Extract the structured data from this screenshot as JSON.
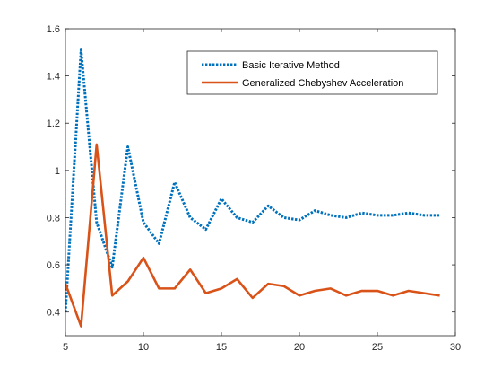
{
  "chart_data": {
    "type": "line",
    "title": "",
    "xlabel": "",
    "ylabel": "",
    "xlim": [
      5,
      30
    ],
    "ylim": [
      0.3,
      1.6
    ],
    "xticks": [
      5,
      10,
      15,
      20,
      25,
      30
    ],
    "yticks": [
      0.4,
      0.6,
      0.8,
      1,
      1.2,
      1.4,
      1.6
    ],
    "xtick_labels": [
      "5",
      "10",
      "15",
      "20",
      "25",
      "30"
    ],
    "ytick_labels": [
      "0.4",
      "0.6",
      "0.8",
      "1",
      "1.2",
      "1.4",
      "1.6"
    ],
    "grid": false,
    "legend_position": "top-right",
    "series": [
      {
        "name": "Basic Iterative Method",
        "color": "#0072BD",
        "style": "dotted",
        "x": [
          5,
          6,
          7,
          8,
          9,
          10,
          11,
          12,
          13,
          14,
          15,
          16,
          17,
          18,
          19,
          20,
          21,
          22,
          23,
          24,
          25,
          26,
          27,
          28,
          29
        ],
        "y": [
          0.4,
          1.51,
          0.78,
          0.59,
          1.1,
          0.78,
          0.69,
          0.95,
          0.8,
          0.75,
          0.88,
          0.8,
          0.78,
          0.85,
          0.8,
          0.79,
          0.83,
          0.81,
          0.8,
          0.82,
          0.81,
          0.81,
          0.82,
          0.81,
          0.81
        ]
      },
      {
        "name": "Generalized Chebyshev Acceleration",
        "color": "#D95319",
        "style": "solid",
        "x": [
          5,
          6,
          7,
          8,
          9,
          10,
          11,
          12,
          13,
          14,
          15,
          16,
          17,
          18,
          19,
          20,
          21,
          22,
          23,
          24,
          25,
          26,
          27,
          28,
          29
        ],
        "y": [
          0.52,
          0.34,
          1.11,
          0.47,
          0.53,
          0.63,
          0.5,
          0.5,
          0.58,
          0.48,
          0.5,
          0.54,
          0.46,
          0.52,
          0.51,
          0.47,
          0.49,
          0.5,
          0.47,
          0.49,
          0.49,
          0.47,
          0.49,
          0.48,
          0.47
        ]
      }
    ]
  }
}
